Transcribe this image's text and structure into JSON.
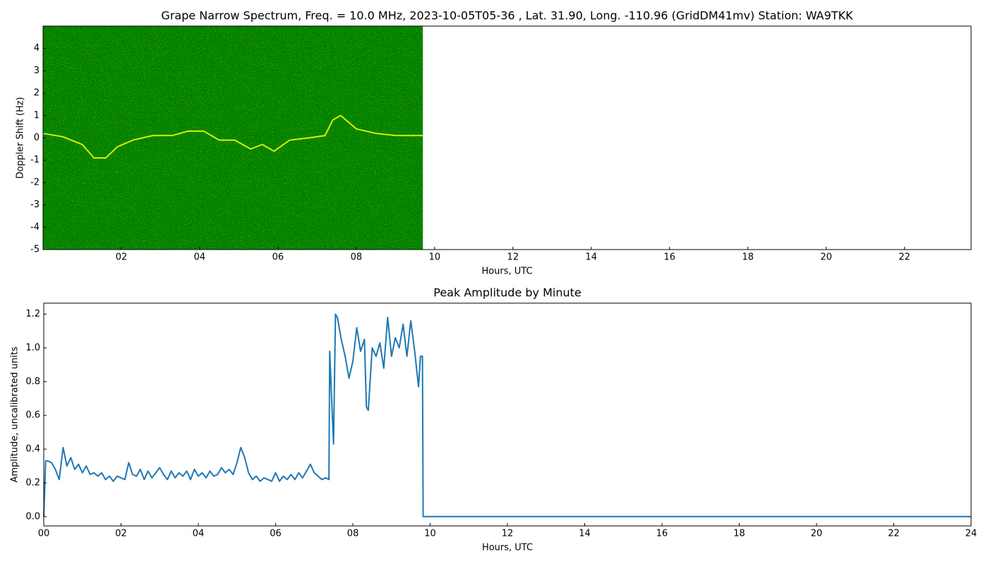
{
  "chart_data": [
    {
      "type": "spectrogram",
      "title": "Grape Narrow Spectrum, Freq. = 10.0 MHz, 2023-10-05T05-36 , Lat.  31.90, Long. -110.96 (GridDM41mv) Station: WA9TKK",
      "xlabel": "Hours, UTC",
      "ylabel": "Doppler Shift (Hz)",
      "xlim": [
        0,
        23.7
      ],
      "ylim": [
        -5,
        5
      ],
      "xticks": [
        {
          "value": 2,
          "label": "02"
        },
        {
          "value": 4,
          "label": "04"
        },
        {
          "value": 6,
          "label": "06"
        },
        {
          "value": 8,
          "label": "08"
        },
        10,
        12,
        14,
        16,
        18,
        20,
        22
      ],
      "yticks": [
        -5,
        -4,
        -3,
        -2,
        -1,
        0,
        1,
        2,
        3,
        4
      ],
      "background": "#008000",
      "color": "#ffff00",
      "x": [
        0,
        0.5,
        1,
        1.3,
        1.6,
        1.9,
        2.3,
        2.8,
        3.3,
        3.7,
        4.1,
        4.5,
        4.9,
        5.3,
        5.6,
        5.9,
        6.3,
        6.8,
        7.2,
        7.4,
        7.6,
        8.0,
        8.5,
        9.0,
        9.7
      ],
      "values": [
        0.2,
        0.05,
        -0.3,
        -0.9,
        -0.9,
        -0.4,
        -0.1,
        0.1,
        0.1,
        0.3,
        0.3,
        -0.1,
        -0.1,
        -0.5,
        -0.3,
        -0.6,
        -0.1,
        0.0,
        0.1,
        0.8,
        1.0,
        0.4,
        0.2,
        0.1,
        0.1
      ]
    },
    {
      "type": "line",
      "title": "Peak Amplitude by Minute",
      "xlabel": "Hours, UTC",
      "ylabel": "Amplitude, uncalibrated units",
      "xlim": [
        0,
        24
      ],
      "ylim": [
        -0.055,
        1.265
      ],
      "xticks": [
        {
          "value": 0,
          "label": "00"
        },
        {
          "value": 2,
          "label": "02"
        },
        {
          "value": 4,
          "label": "04"
        },
        {
          "value": 6,
          "label": "06"
        },
        {
          "value": 8,
          "label": "08"
        },
        10,
        12,
        14,
        16,
        18,
        20,
        22,
        24
      ],
      "yticks": [
        {
          "value": 0,
          "label": "0.0"
        },
        0.2,
        0.4,
        0.6,
        0.8,
        {
          "value": 1,
          "label": "1.0"
        },
        1.2
      ],
      "color": "#1f77b4",
      "x": [
        0,
        0.05,
        0.1,
        0.2,
        0.3,
        0.4,
        0.5,
        0.6,
        0.7,
        0.8,
        0.9,
        1.0,
        1.1,
        1.2,
        1.3,
        1.4,
        1.5,
        1.6,
        1.7,
        1.8,
        1.9,
        2.0,
        2.1,
        2.2,
        2.3,
        2.4,
        2.5,
        2.6,
        2.7,
        2.8,
        2.9,
        3.0,
        3.1,
        3.2,
        3.3,
        3.4,
        3.5,
        3.6,
        3.7,
        3.8,
        3.9,
        4.0,
        4.1,
        4.2,
        4.3,
        4.4,
        4.5,
        4.6,
        4.7,
        4.8,
        4.9,
        5.0,
        5.1,
        5.2,
        5.3,
        5.4,
        5.5,
        5.6,
        5.7,
        5.8,
        5.9,
        6.0,
        6.1,
        6.2,
        6.3,
        6.4,
        6.5,
        6.6,
        6.7,
        6.8,
        6.9,
        7.0,
        7.1,
        7.2,
        7.3,
        7.38,
        7.4,
        7.45,
        7.5,
        7.55,
        7.6,
        7.7,
        7.8,
        7.9,
        8.0,
        8.1,
        8.2,
        8.3,
        8.35,
        8.4,
        8.5,
        8.6,
        8.7,
        8.8,
        8.9,
        9.0,
        9.1,
        9.2,
        9.3,
        9.4,
        9.5,
        9.6,
        9.7,
        9.75,
        9.8,
        9.82,
        24
      ],
      "values": [
        0.0,
        0.33,
        0.33,
        0.32,
        0.28,
        0.22,
        0.41,
        0.3,
        0.35,
        0.28,
        0.31,
        0.26,
        0.3,
        0.25,
        0.26,
        0.24,
        0.26,
        0.22,
        0.24,
        0.21,
        0.24,
        0.23,
        0.22,
        0.32,
        0.25,
        0.24,
        0.28,
        0.22,
        0.27,
        0.23,
        0.26,
        0.29,
        0.25,
        0.22,
        0.27,
        0.23,
        0.26,
        0.24,
        0.27,
        0.22,
        0.28,
        0.24,
        0.26,
        0.23,
        0.27,
        0.24,
        0.25,
        0.29,
        0.26,
        0.28,
        0.25,
        0.32,
        0.41,
        0.35,
        0.26,
        0.22,
        0.24,
        0.21,
        0.23,
        0.22,
        0.21,
        0.26,
        0.21,
        0.24,
        0.22,
        0.25,
        0.22,
        0.26,
        0.23,
        0.27,
        0.31,
        0.26,
        0.24,
        0.22,
        0.23,
        0.22,
        0.98,
        0.7,
        0.43,
        1.2,
        1.18,
        1.05,
        0.95,
        0.82,
        0.92,
        1.12,
        0.98,
        1.05,
        0.65,
        0.63,
        1.0,
        0.95,
        1.03,
        0.88,
        1.18,
        0.95,
        1.06,
        1.0,
        1.14,
        0.95,
        1.16,
        0.98,
        0.77,
        0.95,
        0.95,
        0.0,
        0.0
      ]
    }
  ]
}
